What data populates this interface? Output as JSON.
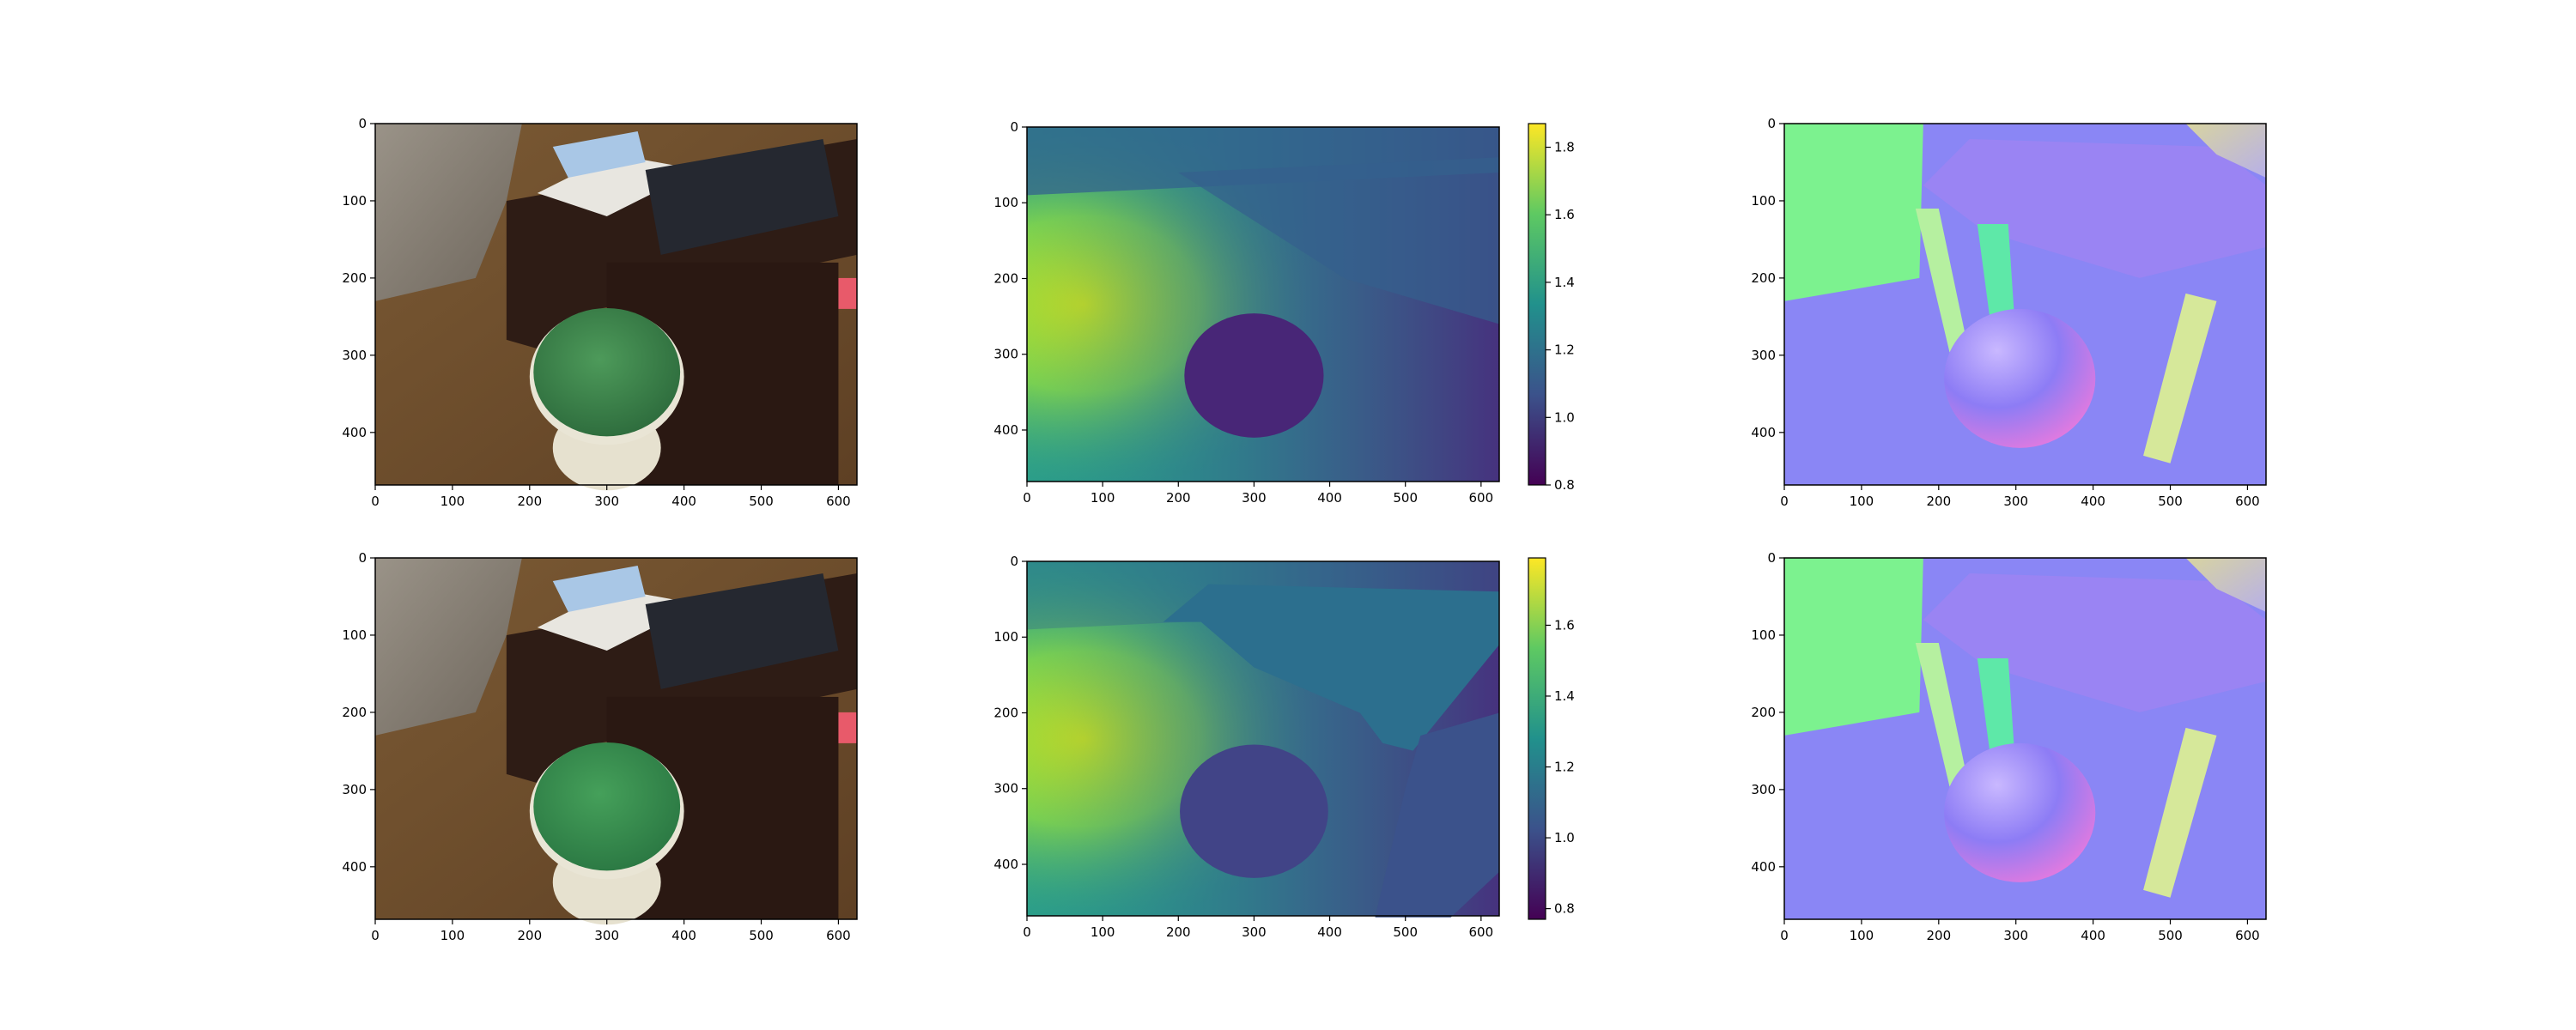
{
  "chart_data": [
    {
      "type": "image",
      "panel": "rgb-prediction-row",
      "description_of_content": "",
      "xticks": [
        0,
        100,
        200,
        300,
        400,
        500,
        600
      ],
      "yticks": [
        0,
        100,
        200,
        300,
        400
      ],
      "xlim": [
        0,
        624
      ],
      "ylim": [
        468,
        0
      ]
    },
    {
      "type": "heatmap",
      "panel": "depth-prediction",
      "xticks": [
        0,
        100,
        200,
        300,
        400,
        500,
        600
      ],
      "yticks": [
        0,
        100,
        200,
        300,
        400
      ],
      "xlim": [
        0,
        624
      ],
      "ylim": [
        468,
        0
      ],
      "colormap": "viridis",
      "colorbar_range": [
        0.8,
        1.87
      ],
      "colorbar_ticks": [
        "0.8",
        "1.0",
        "1.2",
        "1.4",
        "1.6",
        "1.8"
      ]
    },
    {
      "type": "image",
      "panel": "normal-prediction",
      "xticks": [
        0,
        100,
        200,
        300,
        400,
        500,
        600
      ],
      "yticks": [
        0,
        100,
        200,
        300,
        400
      ],
      "xlim": [
        0,
        624
      ],
      "ylim": [
        468,
        0
      ]
    },
    {
      "type": "image",
      "panel": "rgb-ground-truth-row",
      "xticks": [
        0,
        100,
        200,
        300,
        400,
        500,
        600
      ],
      "yticks": [
        0,
        100,
        200,
        300,
        400
      ],
      "xlim": [
        0,
        624
      ],
      "ylim": [
        468,
        0
      ]
    },
    {
      "type": "heatmap",
      "panel": "depth-ground-truth",
      "xticks": [
        0,
        100,
        200,
        300,
        400,
        500,
        600
      ],
      "yticks": [
        0,
        100,
        200,
        300,
        400
      ],
      "xlim": [
        0,
        624
      ],
      "ylim": [
        468,
        0
      ],
      "colormap": "viridis",
      "colorbar_range": [
        0.77,
        1.79
      ],
      "colorbar_ticks": [
        "0.8",
        "1.0",
        "1.2",
        "1.4",
        "1.6"
      ]
    },
    {
      "type": "image",
      "panel": "normal-ground-truth",
      "xticks": [
        0,
        100,
        200,
        300,
        400,
        500,
        600
      ],
      "yticks": [
        0,
        100,
        200,
        300,
        400
      ],
      "xlim": [
        0,
        624
      ],
      "ylim": [
        468,
        0
      ]
    }
  ],
  "colors": {
    "viridis": [
      "#440154",
      "#3b528b",
      "#21918c",
      "#5ec962",
      "#fde725"
    ],
    "rgb_floor": "#6b4a2a",
    "rgb_desk": "#3a2118",
    "rgb_stool_seat": "#3d8a4e",
    "normal_wall": "#7cf28f",
    "normal_floor": "#8a86f5",
    "normal_desk": "#9d7cf0"
  }
}
